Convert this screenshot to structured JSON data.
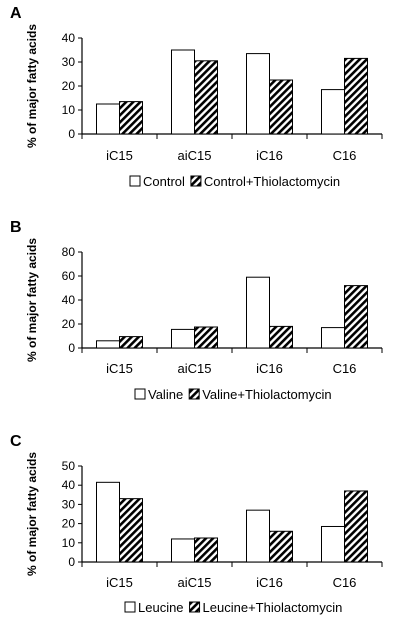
{
  "chart_data": [
    {
      "type": "bar",
      "panel": "A",
      "ylabel": "% of major fatty acids",
      "categories": [
        "iC15",
        "aiC15",
        "iC16",
        "C16"
      ],
      "ylim": [
        0,
        40
      ],
      "yticks": [
        0,
        10,
        20,
        30,
        40
      ],
      "grid": false,
      "legend_position": "bottom",
      "series": [
        {
          "name": "Control",
          "fill": "white",
          "values": [
            12.5,
            35,
            33.5,
            18.5
          ]
        },
        {
          "name": "Control+Thiolactomycin",
          "fill": "hatched",
          "values": [
            13.5,
            30.5,
            22.5,
            31.5
          ]
        }
      ]
    },
    {
      "type": "bar",
      "panel": "B",
      "ylabel": "% of major fatty acids",
      "categories": [
        "iC15",
        "aiC15",
        "iC16",
        "C16"
      ],
      "ylim": [
        0,
        80
      ],
      "yticks": [
        0,
        20,
        40,
        60,
        80
      ],
      "grid": false,
      "legend_position": "bottom",
      "series": [
        {
          "name": "Valine",
          "fill": "white",
          "values": [
            6,
            15.5,
            59,
            17
          ]
        },
        {
          "name": "Valine+Thiolactomycin",
          "fill": "hatched",
          "values": [
            9.5,
            17.5,
            18,
            52
          ]
        }
      ]
    },
    {
      "type": "bar",
      "panel": "C",
      "ylabel": "% of major fatty acids",
      "categories": [
        "iC15",
        "aiC15",
        "iC16",
        "C16"
      ],
      "ylim": [
        0,
        50
      ],
      "yticks": [
        0,
        10,
        20,
        30,
        40,
        50
      ],
      "grid": false,
      "legend_position": "bottom",
      "series": [
        {
          "name": "Leucine",
          "fill": "white",
          "values": [
            41.5,
            12,
            27,
            18.5
          ]
        },
        {
          "name": "Leucine+Thiolactomycin",
          "fill": "hatched",
          "values": [
            33,
            12.5,
            16,
            37
          ]
        }
      ]
    }
  ]
}
